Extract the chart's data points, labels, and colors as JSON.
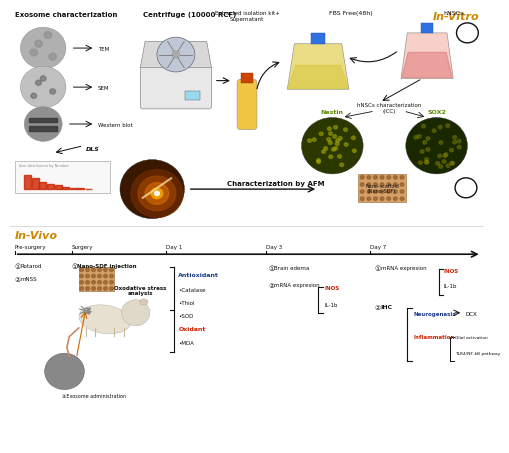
{
  "title_invitro": "In-Vitro",
  "title_invivo": "In-Vivo",
  "bg_color": "#ffffff",
  "orange_color": "#CC6600",
  "blue_color": "#1a3a8a",
  "red_color": "#CC2200",
  "green_color": "#4a7a00",
  "black_color": "#111111",
  "gray_color": "#888888",
  "light_gray": "#cccccc",
  "dark_gray": "#555555",
  "mid_gray": "#aaaaaa",
  "timeline_labels": [
    "Pre-surgery",
    "Surgery",
    "Day 1",
    "Day 3",
    "Day 7"
  ],
  "timeline_x": [
    0.01,
    0.13,
    0.33,
    0.54,
    0.76
  ],
  "exosome_char_label": "Exosome characterization",
  "centrifuge_label": "Centrifuge (10000 RCF)",
  "extracted_label": "Extracted isolation kit+\nSupernatant",
  "fbs_label": "FBS Free(48h)",
  "hnscs_label": "hNSCs",
  "hnscs_char_label": "hNSCs characterization\n(ICC)",
  "nestin_label": "Nestin",
  "sox2_label": "SOX2",
  "tem_label": "TEM",
  "sem_label": "SEM",
  "wb_label": "Western blot",
  "dls_label": "DLS",
  "nano_scaffold_label": "Nano-scaffold\n(Nano-SDF)",
  "char_afm_label": "Characterization by AFM",
  "rotarod_label": "Rotarod",
  "mnss_label": "mNSS",
  "nanosdf_inj_label": "Nano-SDF injection",
  "exo_admin_label": "Exosome administration",
  "oxstress_label": "Oxodative stress\nanalysis",
  "antioxidant_label": "Antioxidant",
  "catalase_label": "•Catalase",
  "thiol_label": "•Thiol",
  "sod_label": "•SOD",
  "oxidant_label": "Oxidant",
  "mda_label": "•MDA",
  "brain_edema_label": "Brain edema",
  "mrna_exp_d3_label": "mRNA expresion",
  "inos_label": "iNOS",
  "il1b_label": "IL-1b",
  "mrna_exp_d7_label": "mRNA expresion",
  "ihc_label": "IHC",
  "neurogenesis_label": "Neurogenesis",
  "dcx_label": "DCX",
  "inflammation_label": "Inflammation",
  "glial_label": "Glial activation",
  "tlr_label": "TLR4/NF-kB pathway"
}
